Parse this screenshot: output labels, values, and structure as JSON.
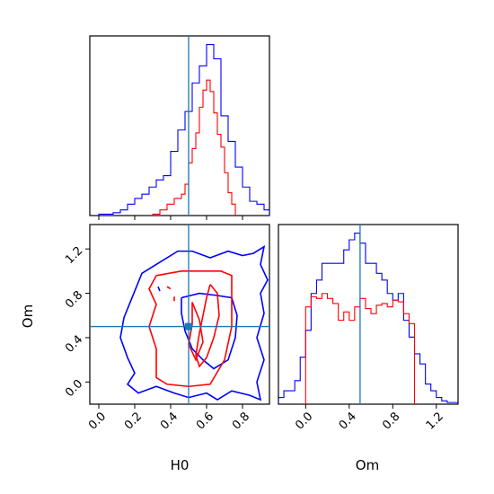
{
  "chart_data": {
    "type": "corner",
    "parameters": [
      "H0",
      "Om"
    ],
    "truth": {
      "H0": 0.5,
      "Om": 0.5
    },
    "colors": {
      "run_a": "#0000ff",
      "run_b": "#ff0000",
      "truth": "#1f77b4",
      "axes": "#000000"
    },
    "series_colors": [
      "#0000ff",
      "#ff0000"
    ],
    "panels": [
      {
        "id": "hist_H0",
        "type": "histogram",
        "x_range": [
          -0.05,
          0.95
        ],
        "x_ticks": [
          0.0,
          0.2,
          0.4,
          0.6,
          0.8
        ],
        "x_tick_labels_shown": false,
        "truth_x": 0.5,
        "series": [
          {
            "color": "#0000ff",
            "bin_edges": [
              0.0,
              0.04,
              0.08,
              0.12,
              0.16,
              0.2,
              0.24,
              0.28,
              0.32,
              0.36,
              0.4,
              0.44,
              0.48,
              0.52,
              0.56,
              0.6,
              0.64,
              0.68,
              0.72,
              0.76,
              0.8,
              0.84,
              0.88,
              0.92,
              0.95
            ],
            "counts": [
              1,
              1,
              2,
              4,
              8,
              12,
              15,
              20,
              25,
              28,
              45,
              60,
              73,
              93,
              105,
              120,
              110,
              70,
              52,
              34,
              20,
              10,
              8,
              4
            ]
          },
          {
            "color": "#ff0000",
            "bin_edges": [
              0.3,
              0.34,
              0.38,
              0.42,
              0.46,
              0.48,
              0.5,
              0.52,
              0.54,
              0.56,
              0.58,
              0.6,
              0.62,
              0.64,
              0.66,
              0.68,
              0.7,
              0.72,
              0.74,
              0.76
            ],
            "counts": [
              1,
              4,
              8,
              12,
              15,
              22,
              37,
              47,
              58,
              76,
              88,
              95,
              87,
              72,
              57,
              48,
              30,
              16,
              8
            ]
          }
        ]
      },
      {
        "id": "contour_H0_Om",
        "type": "contour",
        "x_range": [
          -0.05,
          0.95
        ],
        "y_range": [
          -0.2,
          1.42
        ],
        "x_ticks": [
          0.0,
          0.2,
          0.4,
          0.6,
          0.8
        ],
        "x_tick_labels": [
          "0.0",
          "0.2",
          "0.4",
          "0.6",
          "0.8"
        ],
        "y_ticks": [
          0.0,
          0.4,
          0.8,
          1.2
        ],
        "y_tick_labels": [
          "0.0",
          "0.4",
          "0.8",
          "1.2"
        ],
        "xlabel": "H0",
        "ylabel": "Om",
        "truth_point": [
          0.5,
          0.5
        ],
        "contours": [
          {
            "color": "#0000ff",
            "points": [
              [
                0.34,
                1.08
              ],
              [
                0.44,
                1.18
              ],
              [
                0.52,
                1.18
              ],
              [
                0.62,
                1.12
              ],
              [
                0.72,
                1.18
              ],
              [
                0.8,
                1.14
              ],
              [
                0.86,
                1.16
              ],
              [
                0.92,
                1.22
              ],
              [
                0.9,
                1.06
              ],
              [
                0.94,
                0.92
              ],
              [
                0.9,
                0.8
              ],
              [
                0.92,
                0.62
              ],
              [
                0.88,
                0.4
              ],
              [
                0.92,
                0.2
              ],
              [
                0.88,
                0.0
              ],
              [
                0.9,
                -0.16
              ],
              [
                0.84,
                -0.12
              ],
              [
                0.74,
                -0.08
              ],
              [
                0.66,
                -0.16
              ],
              [
                0.6,
                -0.1
              ],
              [
                0.5,
                -0.14
              ],
              [
                0.42,
                -0.1
              ],
              [
                0.32,
                -0.04
              ],
              [
                0.22,
                -0.1
              ],
              [
                0.16,
                -0.02
              ],
              [
                0.2,
                0.08
              ],
              [
                0.16,
                0.22
              ],
              [
                0.12,
                0.4
              ],
              [
                0.14,
                0.58
              ],
              [
                0.2,
                0.82
              ],
              [
                0.24,
                0.98
              ],
              [
                0.34,
                1.08
              ]
            ]
          },
          {
            "color": "#0000ff",
            "points": [
              [
                0.46,
                0.76
              ],
              [
                0.56,
                0.8
              ],
              [
                0.66,
                0.78
              ],
              [
                0.74,
                0.76
              ],
              [
                0.77,
                0.6
              ],
              [
                0.76,
                0.4
              ],
              [
                0.72,
                0.2
              ],
              [
                0.64,
                0.12
              ],
              [
                0.58,
                0.2
              ],
              [
                0.52,
                0.3
              ],
              [
                0.48,
                0.46
              ],
              [
                0.46,
                0.62
              ],
              [
                0.46,
                0.76
              ]
            ]
          },
          {
            "color": "#0000ff",
            "points": [
              [
                0.33,
                0.86
              ],
              [
                0.34,
                0.82
              ]
            ]
          },
          {
            "color": "#ff0000",
            "points": [
              [
                0.32,
                0.96
              ],
              [
                0.46,
                1.0
              ],
              [
                0.58,
                1.0
              ],
              [
                0.68,
                1.0
              ],
              [
                0.74,
                0.96
              ],
              [
                0.74,
                0.5
              ],
              [
                0.7,
                0.2
              ],
              [
                0.62,
                -0.02
              ],
              [
                0.5,
                -0.04
              ],
              [
                0.38,
                -0.02
              ],
              [
                0.32,
                0.04
              ],
              [
                0.32,
                0.3
              ],
              [
                0.28,
                0.5
              ],
              [
                0.32,
                0.7
              ],
              [
                0.28,
                0.84
              ],
              [
                0.32,
                0.96
              ]
            ]
          },
          {
            "color": "#ff0000",
            "points": [
              [
                0.62,
                0.88
              ],
              [
                0.66,
                0.8
              ],
              [
                0.67,
                0.6
              ],
              [
                0.64,
                0.4
              ],
              [
                0.6,
                0.22
              ],
              [
                0.56,
                0.14
              ],
              [
                0.54,
                0.24
              ],
              [
                0.56,
                0.44
              ],
              [
                0.58,
                0.6
              ],
              [
                0.6,
                0.76
              ],
              [
                0.62,
                0.88
              ]
            ]
          },
          {
            "color": "#ff0000",
            "points": [
              [
                0.52,
                0.72
              ],
              [
                0.56,
                0.56
              ],
              [
                0.58,
                0.36
              ],
              [
                0.54,
                0.2
              ],
              [
                0.5,
                0.34
              ],
              [
                0.52,
                0.52
              ],
              [
                0.52,
                0.72
              ]
            ]
          },
          {
            "color": "#ff0000",
            "points": [
              [
                0.38,
                0.86
              ],
              [
                0.4,
                0.84
              ]
            ]
          },
          {
            "color": "#ff0000",
            "points": [
              [
                0.42,
                0.77
              ],
              [
                0.42,
                0.73
              ]
            ]
          }
        ]
      },
      {
        "id": "hist_Om",
        "type": "histogram",
        "x_range": [
          -0.25,
          1.4
        ],
        "x_ticks": [
          0.0,
          0.4,
          0.8,
          1.2
        ],
        "x_tick_labels": [
          "0.0",
          "0.4",
          "0.8",
          "1.2"
        ],
        "xlabel": "Om",
        "truth_x": 0.5,
        "series": [
          {
            "color": "#0000ff",
            "bin_edges": [
              -0.25,
              -0.2,
              -0.1,
              -0.05,
              0.0,
              0.05,
              0.1,
              0.15,
              0.2,
              0.25,
              0.3,
              0.35,
              0.4,
              0.45,
              0.5,
              0.55,
              0.6,
              0.65,
              0.7,
              0.75,
              0.8,
              0.85,
              0.9,
              0.95,
              1.0,
              1.05,
              1.1,
              1.15,
              1.2,
              1.25,
              1.3,
              1.4
            ],
            "counts": [
              4,
              8,
              14,
              28,
              44,
              66,
              74,
              84,
              84,
              84,
              84,
              92,
              98,
              102,
              96,
              84,
              84,
              78,
              74,
              66,
              62,
              66,
              50,
              40,
              30,
              24,
              12,
              8,
              4,
              2,
              1
            ]
          },
          {
            "color": "#ff0000",
            "bin_edges": [
              0.0,
              0.05,
              0.1,
              0.15,
              0.2,
              0.25,
              0.3,
              0.35,
              0.4,
              0.45,
              0.5,
              0.55,
              0.6,
              0.65,
              0.7,
              0.75,
              0.8,
              0.85,
              0.9,
              0.95,
              1.0
            ],
            "counts": [
              58,
              64,
              63,
              66,
              63,
              60,
              50,
              55,
              50,
              58,
              63,
              57,
              54,
              59,
              60,
              58,
              62,
              61,
              54,
              48
            ]
          }
        ]
      }
    ]
  }
}
